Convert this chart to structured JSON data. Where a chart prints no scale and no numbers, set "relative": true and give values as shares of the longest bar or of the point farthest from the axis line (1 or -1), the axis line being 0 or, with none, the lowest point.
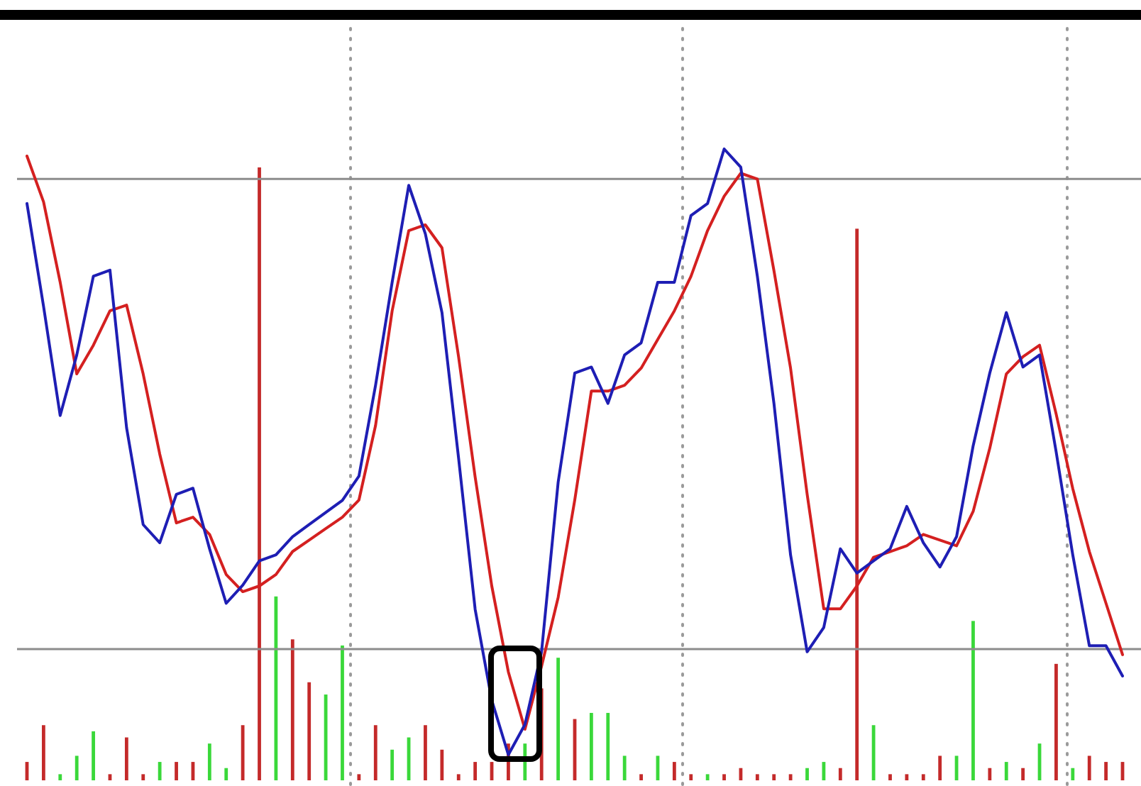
{
  "chart_data": [
    {
      "type": "line",
      "relative": true,
      "categories": [
        null,
        null,
        null,
        null,
        null,
        null,
        null,
        null,
        null,
        null,
        null,
        null,
        null,
        null,
        null,
        null,
        null,
        null,
        null,
        null,
        null,
        null,
        null,
        null,
        null,
        null,
        null,
        null,
        null,
        null,
        null,
        null,
        null,
        null,
        null,
        null,
        null,
        null,
        null,
        null,
        null,
        null,
        null,
        null,
        null,
        null,
        null,
        null,
        null,
        null,
        null,
        null,
        null,
        null,
        null,
        null,
        null,
        null,
        null,
        null,
        null,
        null,
        null,
        null,
        null,
        null,
        null
      ],
      "series": [
        {
          "color": "#d42020",
          "values": [
            1,
            0.92,
            0.78,
            0.62,
            0.67,
            0.73,
            0.74,
            0.62,
            0.48,
            0.36,
            0.37,
            0.34,
            0.27,
            0.24,
            0.25,
            0.27,
            0.31,
            0.33,
            0.35,
            0.37,
            0.4,
            0.53,
            0.73,
            0.87,
            0.88,
            0.84,
            0.65,
            0.44,
            0.25,
            0.1,
            0,
            0.11,
            0.23,
            0.4,
            0.59,
            0.59,
            0.6,
            0.63,
            0.68,
            0.73,
            0.79,
            0.87,
            0.93,
            0.97,
            0.96,
            0.8,
            0.63,
            0.41,
            0.21,
            0.21,
            0.25,
            0.3,
            0.31,
            0.32,
            0.34,
            0.33,
            0.32,
            0.38,
            0.49,
            0.62,
            0.65,
            0.67,
            0.55,
            0.42,
            0.31,
            0.22,
            0.13
          ]
        }
      ],
      "ref_lines": [
        {
          "axis": "y",
          "value": 0.96,
          "color": "#8c8c8c",
          "line_style": "solid"
        },
        {
          "axis": "y",
          "value": 0.14,
          "color": "#8c8c8c",
          "line_style": "solid"
        }
      ]
    },
    {
      "type": "line",
      "relative": true,
      "categories": [
        null,
        null,
        null,
        null,
        null,
        null,
        null,
        null,
        null,
        null,
        null,
        null,
        null,
        null,
        null,
        null,
        null,
        null,
        null,
        null,
        null,
        null,
        null,
        null,
        null,
        null,
        null,
        null,
        null,
        null,
        null,
        null,
        null,
        null,
        null,
        null,
        null,
        null,
        null,
        null,
        null,
        null,
        null,
        null,
        null,
        null,
        null,
        null,
        null,
        null,
        null,
        null,
        null,
        null,
        null,
        null,
        null,
        null,
        null,
        null,
        null,
        null,
        null,
        null,
        null,
        null,
        null
      ],
      "series": [
        {
          "color": "#1e1eb4",
          "values": [
            0.91,
            0.74,
            0.56,
            0.66,
            0.79,
            0.8,
            0.54,
            0.38,
            0.35,
            0.43,
            0.44,
            0.34,
            0.25,
            0.28,
            0.32,
            0.33,
            0.36,
            0.38,
            0.4,
            0.42,
            0.46,
            0.61,
            0.78,
            0.94,
            0.86,
            0.73,
            0.49,
            0.24,
            0.09,
            0,
            0.05,
            0.17,
            0.45,
            0.63,
            0.64,
            0.58,
            0.66,
            0.68,
            0.78,
            0.78,
            0.89,
            0.91,
            1,
            0.97,
            0.79,
            0.58,
            0.33,
            0.17,
            0.21,
            0.34,
            0.3,
            0.32,
            0.34,
            0.41,
            0.35,
            0.31,
            0.36,
            0.51,
            0.63,
            0.73,
            0.64,
            0.66,
            0.5,
            0.33,
            0.18,
            0.18,
            0.13
          ]
        }
      ]
    },
    {
      "type": "bar",
      "relative": true,
      "categories": [
        null,
        null,
        null,
        null,
        null,
        null,
        null,
        null,
        null,
        null,
        null,
        null,
        null,
        null,
        null,
        null,
        null,
        null,
        null,
        null,
        null,
        null,
        null,
        null,
        null,
        null,
        null,
        null,
        null,
        null,
        null,
        null,
        null,
        null,
        null,
        null,
        null,
        null,
        null,
        null,
        null,
        null,
        null,
        null,
        null,
        null,
        null,
        null,
        null,
        null,
        null,
        null,
        null,
        null,
        null,
        null,
        null,
        null,
        null,
        null,
        null,
        null,
        null,
        null,
        null,
        null,
        null
      ],
      "values": [
        0.03,
        0.09,
        0.01,
        0.04,
        0.08,
        0.01,
        0.07,
        0.01,
        0.03,
        0.03,
        0.03,
        0.06,
        0.02,
        0.09,
        1,
        0.3,
        0.23,
        0.16,
        0.14,
        0.22,
        0.01,
        0.09,
        0.05,
        0.07,
        0.09,
        0.05,
        0.01,
        0.03,
        0.03,
        0.06,
        0.06,
        0.15,
        0.2,
        0.1,
        0.11,
        0.11,
        0.04,
        0.01,
        0.04,
        0.03,
        0.01,
        0.01,
        0.01,
        0.02,
        0.01,
        0.01,
        0.01,
        0.02,
        0.03,
        0.02,
        0.9,
        0.09,
        0.01,
        0.01,
        0.01,
        0.04,
        0.04,
        0.26,
        0.02,
        0.03,
        0.02,
        0.06,
        0.19,
        0.02,
        0.04,
        0.03,
        0.03
      ],
      "colors": [
        "#c42a2a",
        "#c42a2a",
        "#3ad83a",
        "#3ad83a",
        "#3ad83a",
        "#c42a2a",
        "#c42a2a",
        "#c42a2a",
        "#3ad83a",
        "#c42a2a",
        "#c42a2a",
        "#3ad83a",
        "#3ad83a",
        "#c42a2a",
        "#c42a2a",
        "#3ad83a",
        "#c42a2a",
        "#c42a2a",
        "#3ad83a",
        "#3ad83a",
        "#c42a2a",
        "#c42a2a",
        "#3ad83a",
        "#3ad83a",
        "#c42a2a",
        "#c42a2a",
        "#c42a2a",
        "#c42a2a",
        "#c42a2a",
        "#c42a2a",
        "#3ad83a",
        "#c42a2a",
        "#3ad83a",
        "#c42a2a",
        "#3ad83a",
        "#3ad83a",
        "#3ad83a",
        "#c42a2a",
        "#3ad83a",
        "#c42a2a",
        "#c42a2a",
        "#3ad83a",
        "#c42a2a",
        "#c42a2a",
        "#c42a2a",
        "#c42a2a",
        "#c42a2a",
        "#3ad83a",
        "#3ad83a",
        "#c42a2a",
        "#c42a2a",
        "#3ad83a",
        "#c42a2a",
        "#c42a2a",
        "#c42a2a",
        "#c42a2a",
        "#3ad83a",
        "#3ad83a",
        "#c42a2a",
        "#3ad83a",
        "#c42a2a",
        "#3ad83a",
        "#c42a2a",
        "#3ad83a",
        "#c42a2a",
        "#c42a2a",
        "#c42a2a"
      ]
    }
  ]
}
